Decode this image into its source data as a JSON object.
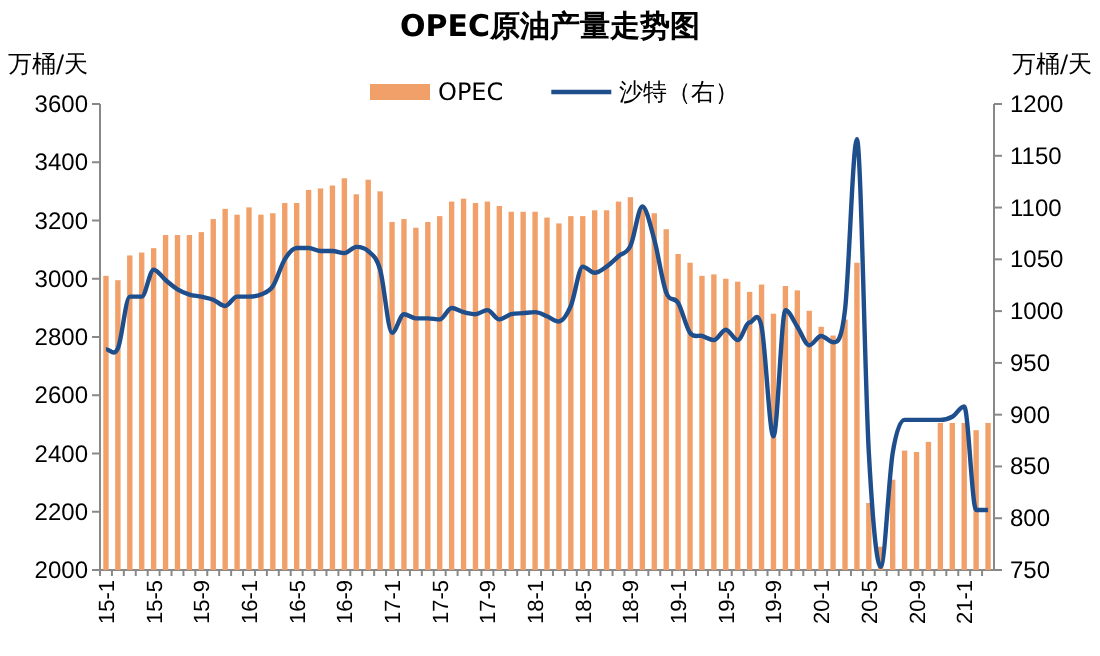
{
  "chart_data": {
    "type": "bar",
    "title": "OPEC原油产量走势图",
    "ylabel": "万桶/天",
    "y2label": "万桶/天",
    "categories": [
      "15-1",
      null,
      null,
      null,
      "15-5",
      null,
      null,
      null,
      "15-9",
      null,
      null,
      null,
      "16-1",
      null,
      null,
      null,
      "16-5",
      null,
      null,
      null,
      "16-9",
      null,
      null,
      null,
      "17-1",
      null,
      null,
      null,
      "17-5",
      null,
      null,
      null,
      "17-9",
      null,
      null,
      null,
      "18-1",
      null,
      null,
      null,
      "18-5",
      null,
      null,
      null,
      "18-9",
      null,
      null,
      null,
      "19-1",
      null,
      null,
      null,
      "19-5",
      null,
      null,
      null,
      "19-9",
      null,
      null,
      null,
      "20-1",
      null,
      null,
      null,
      "20-5",
      null,
      null,
      null,
      "20-9",
      null,
      null,
      null,
      "21-1",
      null,
      null
    ],
    "series": [
      {
        "name": "OPEC",
        "color": "#f0a068",
        "values": [
          3010,
          2995,
          3080,
          3090,
          3105,
          3150,
          3150,
          3150,
          3160,
          3205,
          3240,
          3220,
          3245,
          3220,
          3225,
          3260,
          3260,
          3305,
          3310,
          3320,
          3345,
          3290,
          3340,
          3300,
          3195,
          3205,
          3175,
          3195,
          3215,
          3265,
          3275,
          3260,
          3265,
          3250,
          3230,
          3230,
          3230,
          3210,
          3190,
          3215,
          3215,
          3235,
          3235,
          3265,
          3280,
          3245,
          3225,
          3170,
          3085,
          3055,
          3010,
          3015,
          3000,
          2990,
          2955,
          2980,
          2880,
          2975,
          2960,
          2890,
          2835,
          2805,
          2860,
          3055,
          2230,
          2080,
          2310,
          2410,
          2405,
          2440,
          2505,
          2505,
          2505,
          2480,
          2505
        ]
      },
      {
        "name": "沙特（右）",
        "type": "line",
        "axis": "y2",
        "color": "#1f4e8c",
        "values": [
          963,
          964,
          1014,
          1014,
          1040,
          1030,
          1021,
          1016,
          1014,
          1011,
          1005,
          1014,
          1014,
          1016,
          1024,
          1050,
          1061,
          1061,
          1058,
          1058,
          1056,
          1062,
          1058,
          1040,
          979,
          997,
          993,
          993,
          992,
          1003,
          999,
          997,
          1001,
          992,
          997,
          998,
          999,
          995,
          990,
          1005,
          1043,
          1037,
          1043,
          1053,
          1063,
          1101,
          1069,
          1018,
          1008,
          979,
          976,
          972,
          982,
          972,
          989,
          985,
          879,
          1001,
          985,
          967,
          976,
          970,
          1001,
          1166,
          863,
          753,
          863,
          895,
          895,
          895,
          895,
          898,
          908,
          808,
          808
        ]
      }
    ],
    "ylim": [
      2000,
      3600
    ],
    "yticks": [
      2000,
      2200,
      2400,
      2600,
      2800,
      3000,
      3200,
      3400,
      3600
    ],
    "y2lim": [
      750,
      1200
    ],
    "y2ticks": [
      750,
      800,
      850,
      900,
      950,
      1000,
      1050,
      1100,
      1150,
      1200
    ],
    "legend": "top",
    "grid": false
  }
}
